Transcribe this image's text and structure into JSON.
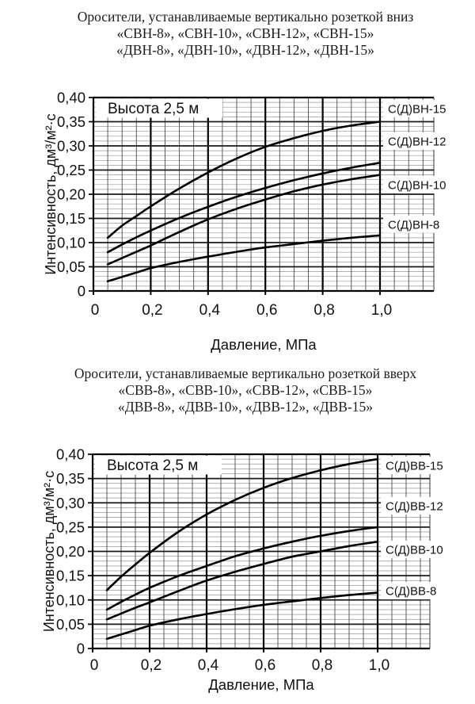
{
  "page_titles": {
    "down": [
      "Оросители, устанавливаемые вертикально розеткой вниз",
      "«СВН-8», «СВН-10», «СВН-12», «СВН-15»",
      "«ДВН-8», «ДВН-10», «ДВН-12», «ДВН-15»"
    ],
    "up": [
      "Оросители, устанавливаемые вертикально розеткой вверх",
      "«СВВ-8», «СВВ-10», «СВВ-12», «СВВ-15»",
      "«ДВВ-8», «ДВВ-10», «ДВВ-12», «ДВВ-15»"
    ]
  },
  "colors": {
    "ink": "#111111",
    "curve": "#000000",
    "grid_minor_h": "#989898",
    "grid_minor_v": "#4a4a4a",
    "grid_major": "#1a1a1a",
    "frame": "#000000",
    "background": "#ffffff"
  },
  "chart_data": [
    {
      "type": "line",
      "annotation": "Высота 2,5 м",
      "xlabel": "Давление, МПа",
      "ylabel": "Интенсивность, дм³/м²·с",
      "xlim": [
        0,
        1.18
      ],
      "ylim": [
        0,
        0.4
      ],
      "grid": true,
      "legend_position": "right-inline-boxes",
      "x_tick_values": [
        0,
        0.2,
        0.4,
        0.6,
        0.8,
        1.0
      ],
      "x_tick_labels": [
        "0",
        "0,2",
        "0,4",
        "0,6",
        "0,8",
        "1,0"
      ],
      "y_tick_values": [
        0,
        0.05,
        0.1,
        0.15,
        0.2,
        0.25,
        0.3,
        0.35,
        0.4
      ],
      "y_tick_labels": [
        "0",
        "0,05",
        "0,10",
        "0,15",
        "0,20",
        "0,25",
        "0,30",
        "0,35",
        "0,40"
      ],
      "x_minor_step": 0.05,
      "y_minor_step": 0.01,
      "x": [
        0.05,
        0.1,
        0.15,
        0.2,
        0.3,
        0.4,
        0.5,
        0.6,
        0.7,
        0.8,
        0.9,
        1.0
      ],
      "series": [
        {
          "name": "С(Д)ВН-15",
          "values": [
            0.11,
            0.135,
            0.155,
            0.175,
            0.212,
            0.245,
            0.274,
            0.298,
            0.316,
            0.331,
            0.342,
            0.35
          ],
          "label_y": 0.377
        },
        {
          "name": "С(Д)ВН-12",
          "values": [
            0.08,
            0.096,
            0.111,
            0.125,
            0.151,
            0.174,
            0.195,
            0.213,
            0.229,
            0.243,
            0.255,
            0.265
          ],
          "label_y": 0.31
        },
        {
          "name": "С(Д)ВН-10",
          "values": [
            0.055,
            0.068,
            0.081,
            0.094,
            0.122,
            0.148,
            0.17,
            0.189,
            0.206,
            0.22,
            0.231,
            0.24
          ],
          "label_y": 0.22
        },
        {
          "name": "С(Д)ВН-8",
          "values": [
            0.02,
            0.029,
            0.038,
            0.047,
            0.06,
            0.071,
            0.081,
            0.09,
            0.097,
            0.104,
            0.11,
            0.115
          ],
          "label_y": 0.138
        }
      ]
    },
    {
      "type": "line",
      "annotation": "Высота 2,5 м",
      "xlabel": "Давление, МПа",
      "ylabel": "Интенсивность, дм³/м²·с",
      "xlim": [
        0,
        1.18
      ],
      "ylim": [
        0,
        0.4
      ],
      "grid": true,
      "legend_position": "right-inline-boxes",
      "x_tick_values": [
        0,
        0.2,
        0.4,
        0.6,
        0.8,
        1.0
      ],
      "x_tick_labels": [
        "0",
        "0,2",
        "0,4",
        "0,6",
        "0,8",
        "1,0"
      ],
      "y_tick_values": [
        0,
        0.05,
        0.1,
        0.15,
        0.2,
        0.25,
        0.3,
        0.35,
        0.4
      ],
      "y_tick_labels": [
        "0",
        "0,05",
        "0,10",
        "0,15",
        "0,20",
        "0,25",
        "0,30",
        "0,35",
        "0,40"
      ],
      "x_minor_step": 0.05,
      "y_minor_step": 0.01,
      "x": [
        0.05,
        0.1,
        0.15,
        0.2,
        0.3,
        0.4,
        0.5,
        0.6,
        0.7,
        0.8,
        0.9,
        1.0
      ],
      "series": [
        {
          "name": "С(Д)ВВ-15",
          "values": [
            0.12,
            0.148,
            0.173,
            0.197,
            0.24,
            0.276,
            0.306,
            0.331,
            0.351,
            0.367,
            0.38,
            0.39
          ],
          "label_y": 0.377
        },
        {
          "name": "С(Д)ВВ-12",
          "values": [
            0.08,
            0.096,
            0.111,
            0.125,
            0.149,
            0.17,
            0.19,
            0.206,
            0.22,
            0.232,
            0.242,
            0.25
          ],
          "label_y": 0.294
        },
        {
          "name": "С(Д)ВВ-10",
          "values": [
            0.06,
            0.072,
            0.084,
            0.095,
            0.118,
            0.14,
            0.158,
            0.174,
            0.189,
            0.2,
            0.211,
            0.22
          ],
          "label_y": 0.204
        },
        {
          "name": "С(Д)ВВ-8",
          "values": [
            0.02,
            0.029,
            0.038,
            0.047,
            0.06,
            0.071,
            0.081,
            0.09,
            0.097,
            0.104,
            0.11,
            0.115
          ],
          "label_y": 0.119
        }
      ]
    }
  ]
}
